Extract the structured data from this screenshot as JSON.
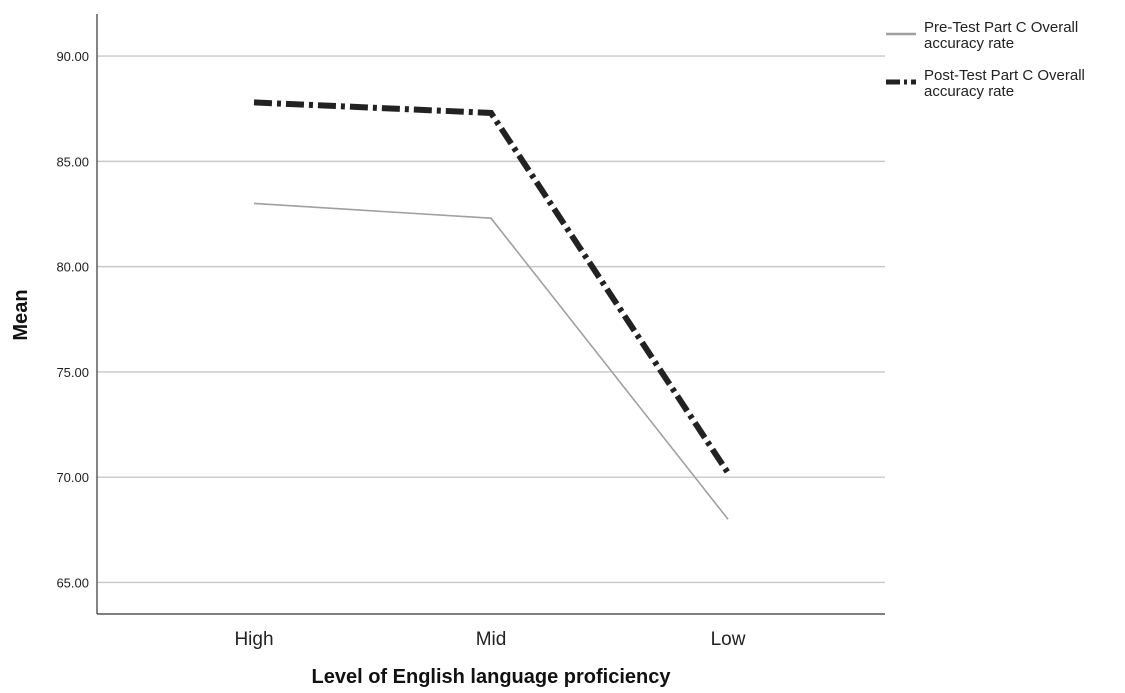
{
  "chart_data": {
    "type": "line",
    "xlabel": "Level of English language proficiency",
    "ylabel": "Mean",
    "categories": [
      "High",
      "Mid",
      "Low"
    ],
    "ylim": [
      63.5,
      92
    ],
    "yticks": [
      65,
      70,
      75,
      80,
      85,
      90
    ],
    "ytick_labels": [
      "65.00",
      "70.00",
      "75.00",
      "80.00",
      "85.00",
      "90.00"
    ],
    "grid": "horizontal",
    "legend_position": "top-right",
    "series": [
      {
        "name": "Pre-Test Part C Overall accuracy rate",
        "values": [
          83.0,
          82.3,
          68.0
        ],
        "color": "#a0a0a0",
        "style": "solid"
      },
      {
        "name": "Post-Test Part C Overall accuracy rate",
        "values": [
          87.8,
          87.3,
          70.2
        ],
        "color": "#222222",
        "style": "dash-dot"
      }
    ]
  }
}
